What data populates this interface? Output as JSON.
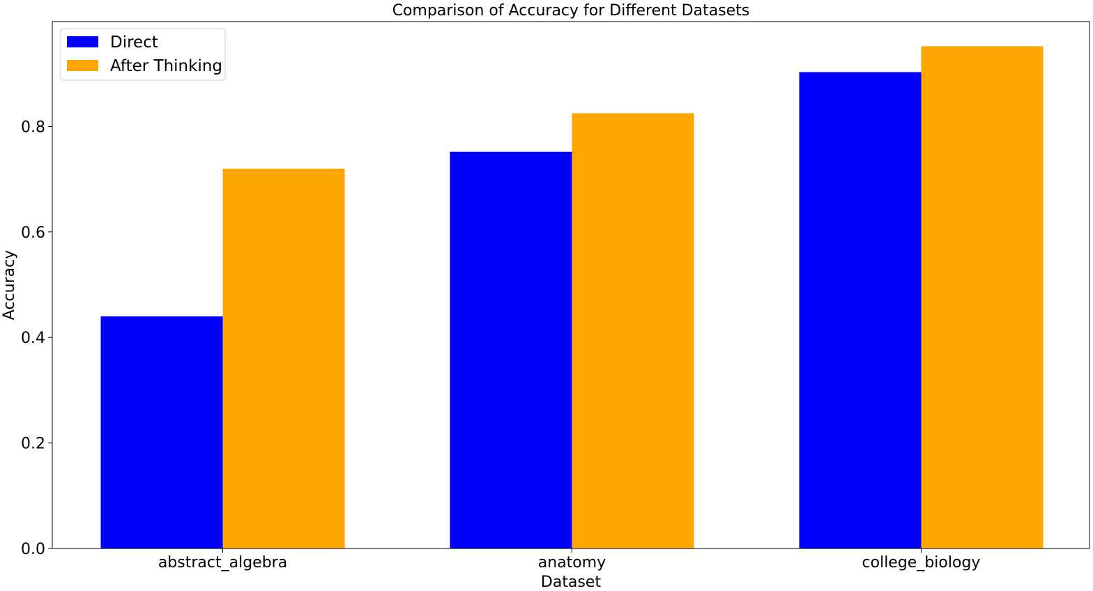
{
  "chart_data": {
    "type": "bar",
    "title": "Comparison of Accuracy for Different Datasets",
    "xlabel": "Dataset",
    "ylabel": "Accuracy",
    "categories": [
      "abstract_algebra",
      "anatomy",
      "college_biology"
    ],
    "series": [
      {
        "name": "Direct",
        "values": [
          0.44,
          0.752,
          0.903
        ],
        "color": "#0000ff"
      },
      {
        "name": "After Thinking",
        "values": [
          0.72,
          0.825,
          0.952
        ],
        "color": "#ffa500"
      }
    ],
    "ylim": [
      0,
      1.0
    ],
    "yticks": [
      "0.0",
      "0.2",
      "0.4",
      "0.6",
      "0.8"
    ],
    "grid": false,
    "legend_position": "top-left"
  }
}
